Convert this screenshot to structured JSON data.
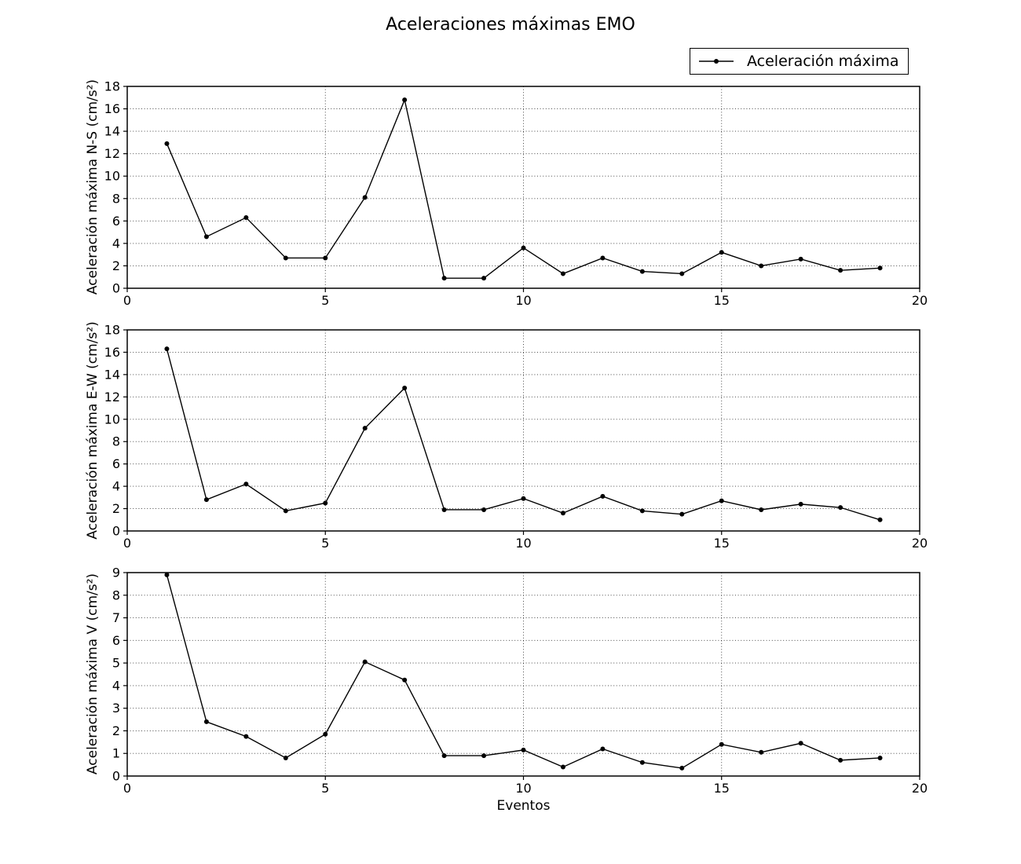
{
  "title": "Aceleraciones máximas EMO",
  "xlabel": "Eventos",
  "legend": {
    "label": "Aceleración máxima"
  },
  "colors": {
    "line": "#000000",
    "marker": "#000000",
    "grid": "#333333",
    "frame": "#000000",
    "text": "#000000",
    "background": "#ffffff"
  },
  "chart_data": [
    {
      "id": "ns",
      "type": "line",
      "ylabel": "Aceleración máxima N-S (cm/s²)",
      "x": [
        1,
        2,
        3,
        4,
        5,
        6,
        7,
        8,
        9,
        10,
        11,
        12,
        13,
        14,
        15,
        16,
        17,
        18,
        19
      ],
      "values": [
        12.9,
        4.6,
        6.3,
        2.7,
        2.7,
        8.1,
        16.8,
        0.9,
        0.9,
        3.6,
        1.3,
        2.7,
        1.5,
        1.3,
        3.2,
        2.0,
        2.6,
        1.6,
        1.8
      ],
      "xlim": [
        0,
        20
      ],
      "ylim": [
        0,
        18
      ],
      "xticks": [
        0,
        5,
        10,
        15,
        20
      ],
      "ytick_step": 2,
      "grid": true,
      "legend_entries": [
        "Aceleración máxima"
      ]
    },
    {
      "id": "ew",
      "type": "line",
      "ylabel": "Aceleración máxima E-W (cm/s²)",
      "x": [
        1,
        2,
        3,
        4,
        5,
        6,
        7,
        8,
        9,
        10,
        11,
        12,
        13,
        14,
        15,
        16,
        17,
        18,
        19
      ],
      "values": [
        16.3,
        2.8,
        4.2,
        1.8,
        2.5,
        9.2,
        12.8,
        1.9,
        1.9,
        2.9,
        1.6,
        3.1,
        1.8,
        1.5,
        2.7,
        1.9,
        2.4,
        2.1,
        1.0
      ],
      "xlim": [
        0,
        20
      ],
      "ylim": [
        0,
        18
      ],
      "xticks": [
        0,
        5,
        10,
        15,
        20
      ],
      "ytick_step": 2,
      "grid": true,
      "legend_entries": [
        "Aceleración máxima"
      ]
    },
    {
      "id": "v",
      "type": "line",
      "ylabel": "Aceleración máxima V (cm/s²)",
      "xlabel": "Eventos",
      "x": [
        1,
        2,
        3,
        4,
        5,
        6,
        7,
        8,
        9,
        10,
        11,
        12,
        13,
        14,
        15,
        16,
        17,
        18,
        19
      ],
      "values": [
        8.9,
        2.4,
        1.75,
        0.8,
        1.85,
        5.05,
        4.25,
        0.9,
        0.9,
        1.15,
        0.4,
        1.2,
        0.6,
        0.35,
        1.4,
        1.05,
        1.45,
        0.7,
        0.8
      ],
      "xlim": [
        0,
        20
      ],
      "ylim": [
        0,
        9
      ],
      "xticks": [
        0,
        5,
        10,
        15,
        20
      ],
      "ytick_step": 1,
      "grid": true,
      "legend_entries": [
        "Aceleración máxima"
      ]
    }
  ]
}
